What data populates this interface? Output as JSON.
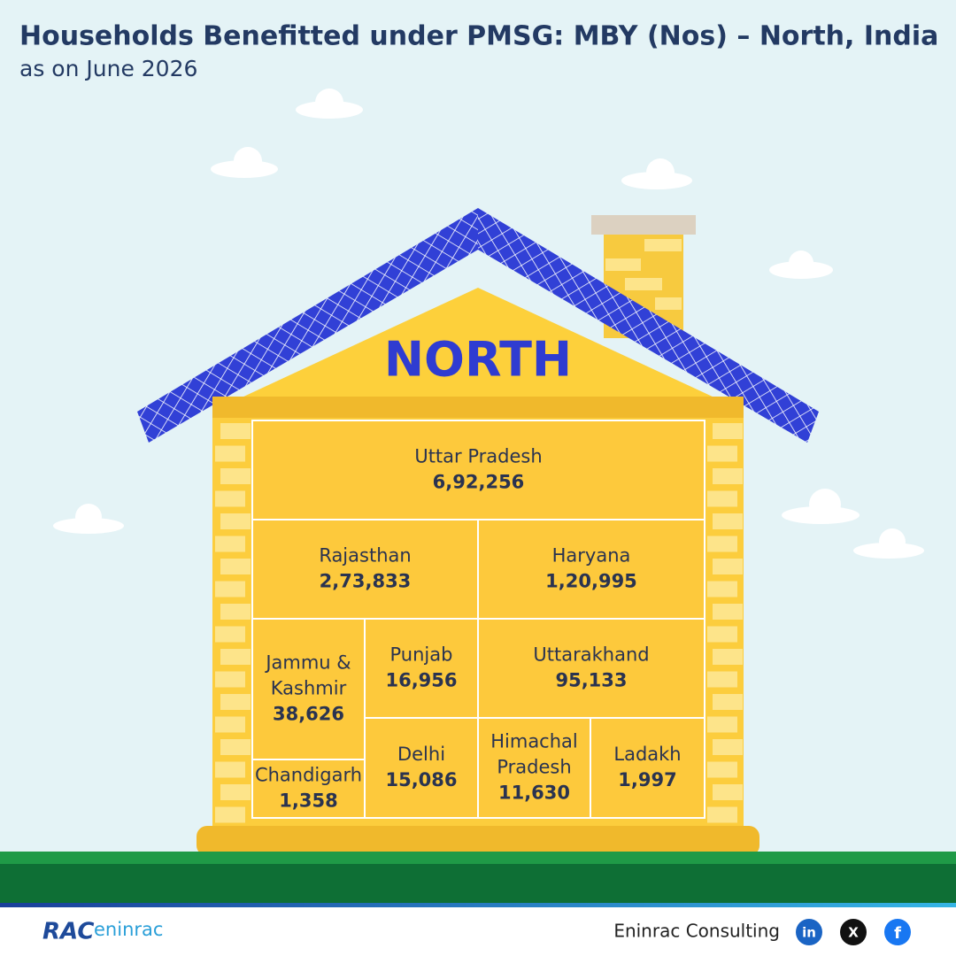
{
  "header": {
    "title": "Households Benefitted under PMSG: MBY (Nos) – North, India",
    "subtitle": "as on June 2026"
  },
  "house": {
    "label": "NORTH",
    "cells": [
      {
        "name_lines": [
          "Uttar Pradesh"
        ],
        "value": "6,92,256"
      },
      {
        "name_lines": [
          "Rajasthan"
        ],
        "value": "2,73,833"
      },
      {
        "name_lines": [
          "Haryana"
        ],
        "value": "1,20,995"
      },
      {
        "name_lines": [
          "Jammu &",
          "Kashmir"
        ],
        "value": "38,626"
      },
      {
        "name_lines": [
          "Chandigarh"
        ],
        "value": "1,358"
      },
      {
        "name_lines": [
          "Punjab"
        ],
        "value": "16,956"
      },
      {
        "name_lines": [
          "Uttarakhand"
        ],
        "value": "95,133"
      },
      {
        "name_lines": [
          "Delhi"
        ],
        "value": "15,086"
      },
      {
        "name_lines": [
          "Himachal",
          "Pradesh"
        ],
        "value": "11,630"
      },
      {
        "name_lines": [
          "Ladakh"
        ],
        "value": "1,997"
      }
    ]
  },
  "footer": {
    "logo": [
      "RAC",
      "eninrac"
    ],
    "company": "Eninrac Consulting",
    "social": [
      "in",
      "X",
      "f"
    ]
  }
}
